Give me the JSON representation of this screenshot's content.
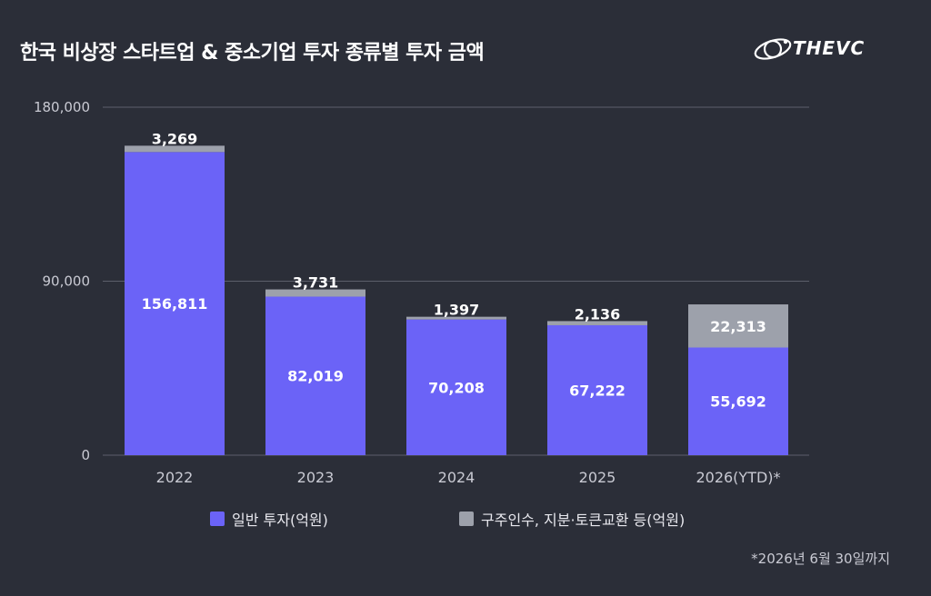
{
  "title": "한국 비상장 스타트업 & 중소기업 투자 종류별 투자 금액",
  "logo": {
    "text": "THEVC",
    "icon": "orbit-logo-icon"
  },
  "footnote": "*2026년 6월 30일까지",
  "colors": {
    "background": "#2b2e38",
    "general_investment": "#6b63f7",
    "other_investment": "#9da1ab",
    "grid": "#5c5f6b",
    "axis_text": "#c9cad3"
  },
  "chart_data": {
    "type": "bar",
    "stacked": true,
    "title": "한국 비상장 스타트업 & 중소기업 투자 종류별 투자 금액",
    "xlabel": "",
    "ylabel": "",
    "categories": [
      "2022",
      "2023",
      "2024",
      "2025",
      "2026(YTD)*"
    ],
    "series": [
      {
        "name": "일반 투자(억원)",
        "values": [
          156811,
          82019,
          70208,
          67222,
          55692
        ],
        "labels": [
          "156,811",
          "82,019",
          "70,208",
          "67,222",
          "55,692"
        ]
      },
      {
        "name": "구주인수, 지분·토큰교환 등(억원)",
        "values": [
          3269,
          3731,
          1397,
          2136,
          22313
        ],
        "labels": [
          "3,269",
          "3,731",
          "1,397",
          "2,136",
          "22,313"
        ]
      }
    ],
    "ylim": [
      0,
      180000
    ],
    "yticks": [
      0,
      90000,
      180000
    ],
    "ytick_labels": [
      "0",
      "90,000",
      "180,000"
    ],
    "grid": true,
    "legend_position": "bottom"
  }
}
